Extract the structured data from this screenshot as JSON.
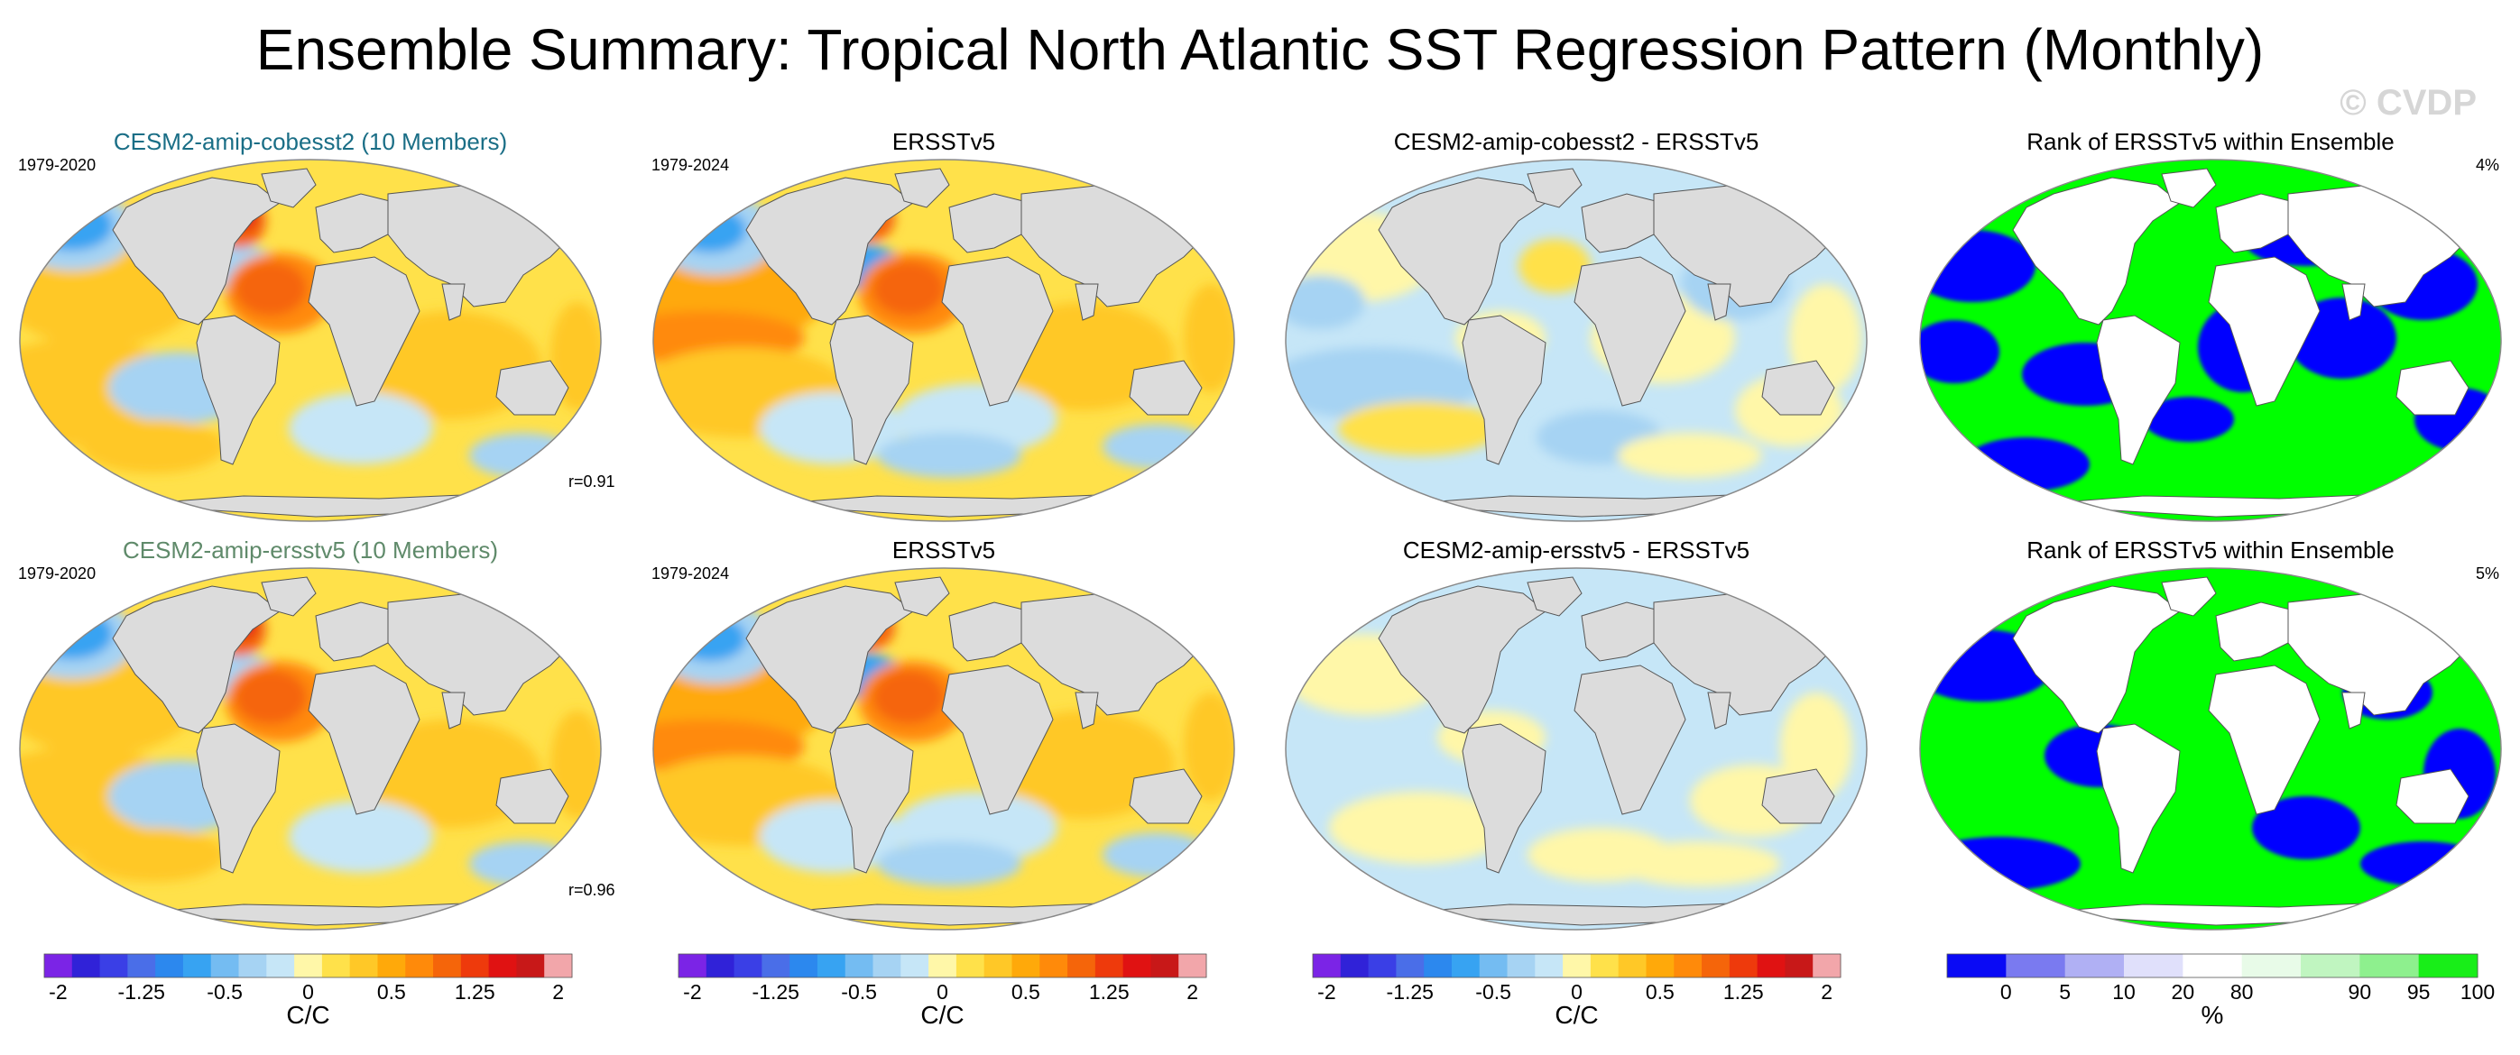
{
  "title": "Ensemble Summary: Tropical North Atlantic SST Regression Pattern (Monthly)",
  "watermark": "© CVDP",
  "colors": {
    "model_title_1": "#1a6e86",
    "model_title_2": "#5f8a6a",
    "land": "#dcdcdc",
    "coast": "#555555",
    "rank_low": "#0000ff",
    "rank_high": "#00ff00"
  },
  "rows": [
    {
      "panels": [
        {
          "title": "CESM2-amip-cobesst2 (10 Members)",
          "period": "1979-2020",
          "corr": "r=0.91",
          "type": "model"
        },
        {
          "title": "ERSSTv5",
          "period": "1979-2024",
          "type": "obs"
        },
        {
          "title": "CESM2-amip-cobesst2 - ERSSTv5",
          "type": "diff"
        },
        {
          "title": "Rank of ERSSTv5 within Ensemble",
          "percent": "4%",
          "type": "rank"
        }
      ]
    },
    {
      "panels": [
        {
          "title": "CESM2-amip-ersstv5 (10 Members)",
          "period": "1979-2020",
          "corr": "r=0.96",
          "type": "model"
        },
        {
          "title": "ERSSTv5",
          "period": "1979-2024",
          "type": "obs"
        },
        {
          "title": "CESM2-amip-ersstv5 - ERSSTv5",
          "type": "diff"
        },
        {
          "title": "Rank of ERSSTv5 within Ensemble",
          "percent": "5%",
          "type": "rank"
        }
      ]
    }
  ],
  "colorbars": [
    {
      "unit": "C/C",
      "colors": [
        "#7b24e6",
        "#3022d8",
        "#3a3fe6",
        "#4a6ee8",
        "#2c88ee",
        "#37a3f2",
        "#74bcf2",
        "#a6d3f3",
        "#c6e6f7",
        "#fff7a8",
        "#ffe14a",
        "#ffc827",
        "#ffa90a",
        "#ff8a0a",
        "#f5650a",
        "#ee3a0c",
        "#e01212",
        "#c81818",
        "#f2a6aa"
      ],
      "tick_labels": [
        "-2",
        "-1.25",
        "-0.5",
        "0",
        "0.5",
        "1.25",
        "2"
      ]
    },
    {
      "unit": "C/C",
      "colors": [
        "#7b24e6",
        "#3022d8",
        "#3a3fe6",
        "#4a6ee8",
        "#2c88ee",
        "#37a3f2",
        "#74bcf2",
        "#a6d3f3",
        "#c6e6f7",
        "#fff7a8",
        "#ffe14a",
        "#ffc827",
        "#ffa90a",
        "#ff8a0a",
        "#f5650a",
        "#ee3a0c",
        "#e01212",
        "#c81818",
        "#f2a6aa"
      ],
      "tick_labels": [
        "-2",
        "-1.25",
        "-0.5",
        "0",
        "0.5",
        "1.25",
        "2"
      ]
    },
    {
      "unit": "C/C",
      "colors": [
        "#7b24e6",
        "#3022d8",
        "#3a3fe6",
        "#4a6ee8",
        "#2c88ee",
        "#37a3f2",
        "#74bcf2",
        "#a6d3f3",
        "#c6e6f7",
        "#fff7a8",
        "#ffe14a",
        "#ffc827",
        "#ffa90a",
        "#ff8a0a",
        "#f5650a",
        "#ee3a0c",
        "#e01212",
        "#c81818",
        "#f2a6aa"
      ],
      "tick_labels": [
        "-2",
        "-1.25",
        "-0.5",
        "0",
        "0.5",
        "1.25",
        "2"
      ]
    },
    {
      "unit": "%",
      "colors": [
        "#0a0af5",
        "#7a7af0",
        "#b0b0f4",
        "#e0e0fb",
        "#ffffff",
        "#e8fbe8",
        "#c0f5c0",
        "#8ef08e",
        "#18ee18"
      ],
      "tick_labels": [
        "0",
        "5",
        "10",
        "20",
        "80",
        "90",
        "95",
        "100"
      ]
    }
  ]
}
